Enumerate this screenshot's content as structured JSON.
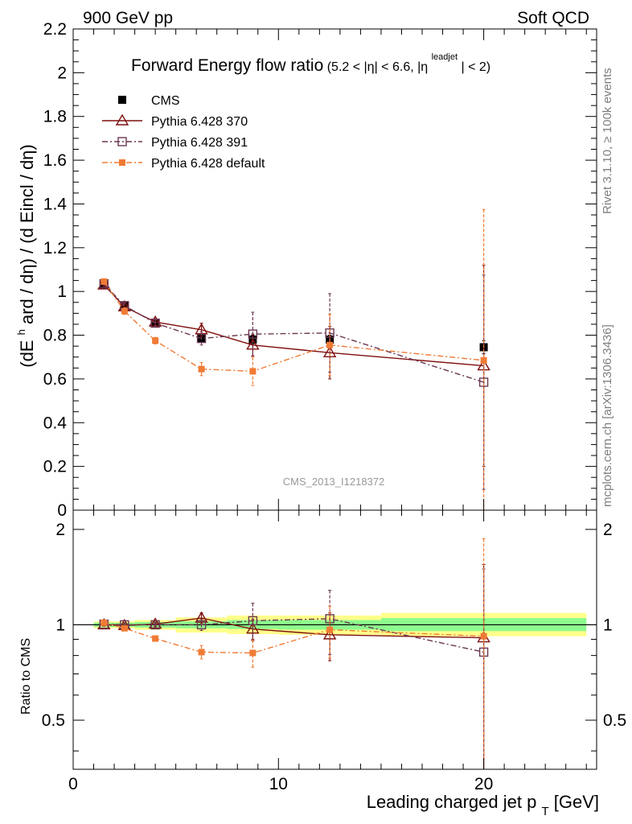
{
  "header": {
    "left": "900 GeV pp",
    "right": "Soft QCD"
  },
  "side_labels": {
    "rivet": "Rivet 3.1.10, ≥ 100k events",
    "mcplots": "mcplots.cern.ch [arXiv:1306.3436]"
  },
  "watermark": "CMS_2013_I1218372",
  "chart_data": [
    {
      "type": "line",
      "panel": "main",
      "title": "Forward Energy flow ratio",
      "title_sub": "(5.2 < |η| < 6.6, |η",
      "title_sup": "leadjet",
      "title_end": "| < 2)",
      "ylabel": "(dE^hard / dη) / (d Eincl / dη)",
      "ylabel_parts": [
        "(dE",
        "h",
        "ard / dη) / (d Eincl / dη)"
      ],
      "xlim": [
        0,
        25.5
      ],
      "ylim": [
        0,
        2.2
      ],
      "x_ticks": [
        0,
        10,
        20
      ],
      "y_ticks": [
        "0",
        "0.2",
        "0.4",
        "0.6",
        "0.8",
        "1",
        "1.2",
        "1.4",
        "1.6",
        "1.8",
        "2",
        "2.2"
      ],
      "legend_position": "top-left",
      "series": [
        {
          "name": "CMS",
          "color": "#000000",
          "marker": "filled-square",
          "line": "none",
          "x": [
            1.5,
            2.5,
            4.0,
            6.25,
            8.75,
            12.5,
            20.0
          ],
          "y": [
            1.03,
            0.935,
            0.855,
            0.785,
            0.78,
            0.78,
            0.745
          ],
          "err": [
            0.01,
            0.01,
            0.01,
            0.015,
            0.02,
            0.02,
            0.03
          ]
        },
        {
          "name": "Pythia 6.428 370",
          "color": "#7f0f0f",
          "marker": "open-triangle",
          "line": "solid",
          "x": [
            1.5,
            2.5,
            4.0,
            6.25,
            8.75,
            12.5,
            20.0
          ],
          "y": [
            1.03,
            0.93,
            0.86,
            0.825,
            0.755,
            0.72,
            0.66
          ],
          "err": [
            0.01,
            0.015,
            0.015,
            0.03,
            0.05,
            0.12,
            0.46
          ]
        },
        {
          "name": "Pythia 6.428 391",
          "color": "#6b3752",
          "marker": "open-square",
          "line": "dashdot",
          "x": [
            1.5,
            2.5,
            4.0,
            6.25,
            8.75,
            12.5,
            20.0
          ],
          "y": [
            1.035,
            0.935,
            0.855,
            0.785,
            0.805,
            0.81,
            0.585
          ],
          "err": [
            0.01,
            0.015,
            0.015,
            0.03,
            0.1,
            0.18,
            0.49
          ]
        },
        {
          "name": "Pythia 6.428 default",
          "color": "#f07b35",
          "marker": "filled-square-small",
          "line": "dashdot",
          "x": [
            1.5,
            2.5,
            4.0,
            6.25,
            8.75,
            12.5,
            20.0
          ],
          "y": [
            1.045,
            0.91,
            0.775,
            0.645,
            0.635,
            0.755,
            0.685
          ],
          "err": [
            0.01,
            0.015,
            0.015,
            0.03,
            0.065,
            0.14,
            0.69
          ]
        }
      ]
    },
    {
      "type": "line",
      "panel": "ratio",
      "ylabel": "Ratio to CMS",
      "xlabel": "Leading charged jet p",
      "xlabel_sub": "T",
      "xlabel_unit": "[GeV]",
      "xlim": [
        0,
        25.5
      ],
      "ylim": [
        0.35,
        2.3
      ],
      "y_scale": "log",
      "x_ticks": [
        "0",
        "10",
        "20"
      ],
      "y_ticks": [
        "0.5",
        "1",
        "2"
      ],
      "reference_line": 1,
      "bands": [
        {
          "x": [
            1.0,
            2.0
          ],
          "inner": [
            0.985,
            1.015
          ],
          "outer": [
            0.975,
            1.025
          ]
        },
        {
          "x": [
            2.0,
            3.0
          ],
          "inner": [
            0.985,
            1.015
          ],
          "outer": [
            0.975,
            1.025
          ]
        },
        {
          "x": [
            3.0,
            5.0
          ],
          "inner": [
            0.98,
            1.02
          ],
          "outer": [
            0.965,
            1.035
          ]
        },
        {
          "x": [
            5.0,
            7.5
          ],
          "inner": [
            0.975,
            1.025
          ],
          "outer": [
            0.945,
            1.055
          ]
        },
        {
          "x": [
            7.5,
            10.0
          ],
          "inner": [
            0.97,
            1.035
          ],
          "outer": [
            0.935,
            1.07
          ]
        },
        {
          "x": [
            10.0,
            15.0
          ],
          "inner": [
            0.965,
            1.035
          ],
          "outer": [
            0.93,
            1.07
          ]
        },
        {
          "x": [
            15.0,
            25.0
          ],
          "inner": [
            0.955,
            1.05
          ],
          "outer": [
            0.92,
            1.09
          ]
        }
      ],
      "series": [
        {
          "name": "Pythia 6.428 370",
          "color": "#7f0f0f",
          "marker": "open-triangle",
          "line": "solid",
          "x": [
            1.5,
            2.5,
            4.0,
            6.25,
            8.75,
            12.5,
            20.0
          ],
          "y": [
            1.0,
            0.995,
            1.005,
            1.05,
            0.97,
            0.93,
            0.91
          ],
          "err": [
            0.01,
            0.015,
            0.015,
            0.04,
            0.07,
            0.16,
            0.64
          ]
        },
        {
          "name": "Pythia 6.428 391",
          "color": "#6b3752",
          "marker": "open-square",
          "line": "dashdot",
          "x": [
            1.5,
            2.5,
            4.0,
            6.25,
            8.75,
            12.5,
            20.0
          ],
          "y": [
            1.005,
            1.0,
            1.0,
            1.0,
            1.03,
            1.045,
            0.82
          ],
          "err": [
            0.01,
            0.015,
            0.015,
            0.04,
            0.14,
            0.24,
            0.68
          ]
        },
        {
          "name": "Pythia 6.428 default",
          "color": "#f07b35",
          "marker": "filled-square-small",
          "line": "dashdot",
          "x": [
            1.5,
            2.5,
            4.0,
            6.25,
            8.75,
            12.5,
            20.0
          ],
          "y": [
            1.015,
            0.975,
            0.905,
            0.82,
            0.815,
            0.965,
            0.92
          ],
          "err": [
            0.01,
            0.015,
            0.015,
            0.04,
            0.08,
            0.18,
            0.95
          ]
        }
      ]
    }
  ]
}
